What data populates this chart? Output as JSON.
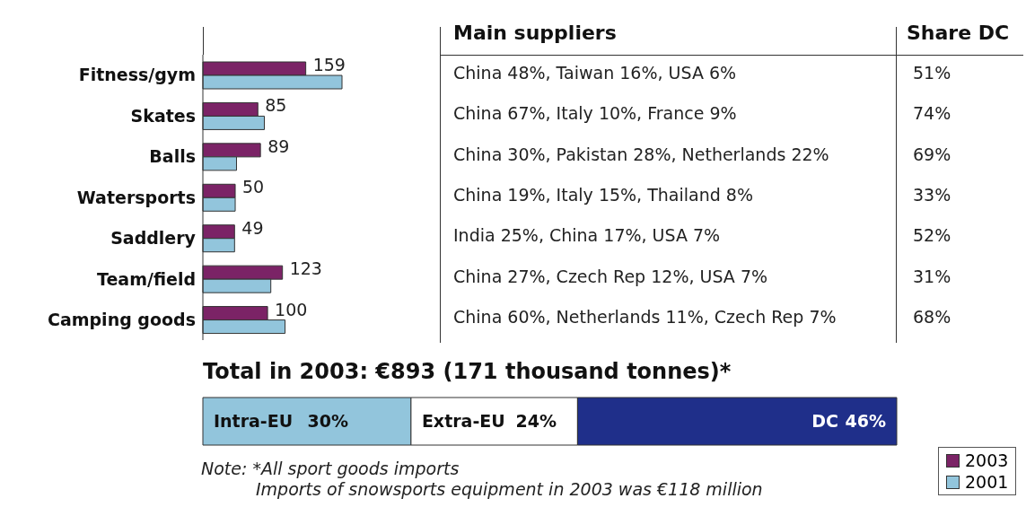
{
  "chart_data": [
    {
      "type": "bar",
      "orientation": "horizontal",
      "categories": [
        "Fitness/gym",
        "Skates",
        "Balls",
        "Watersports",
        "Saddlery",
        "Team/field",
        "Camping goods"
      ],
      "series": [
        {
          "name": "2003",
          "color": "#7b2366",
          "values": [
            159,
            85,
            89,
            50,
            49,
            123,
            100
          ],
          "value_labels": [
            "159",
            "85",
            "89",
            "50",
            "49",
            "123",
            "100"
          ]
        },
        {
          "name": "2001",
          "color": "#92c5dc",
          "values": [
            215,
            95,
            52,
            50,
            49,
            105,
            127
          ]
        }
      ],
      "legend": "bottom right",
      "annotations": [
        "Main suppliers",
        "Share DC",
        "China 48%, Taiwan 16%, USA 6%",
        "51%",
        "China 67%, Italy 10%, France 9%",
        "74%",
        "China 30%, Pakistan 28%, Netherlands 22%",
        "69%",
        "China 19%, Italy 15%, Thailand 8%",
        "33%",
        "India 25%, China 17%, USA 7%",
        "52%",
        "China 27%, Czech Rep 12%, USA 7%",
        "31%",
        "China 60%, Netherlands 11%, Czech Rep 7%",
        "68%"
      ]
    },
    {
      "type": "bar",
      "orientation": "horizontal",
      "stacked": true,
      "title": "Total in 2003: €893 (171 thousand tonnes)*",
      "categories": [
        null
      ],
      "series": [
        {
          "name": "Intra-EU",
          "color": "#92c5dc",
          "values": [
            30
          ],
          "value_labels": [
            "30%"
          ]
        },
        {
          "name": "Extra-EU",
          "color": "#ffffff",
          "values": [
            24
          ],
          "value_labels": [
            "24%"
          ]
        },
        {
          "name": "DC",
          "color": "#1f2f8a",
          "values": [
            46
          ],
          "value_labels": [
            "46%"
          ]
        }
      ],
      "annotations": [
        "Note: *All sport goods imports",
        "Imports of snowsports equipment in 2003 was €118 million"
      ]
    }
  ]
}
